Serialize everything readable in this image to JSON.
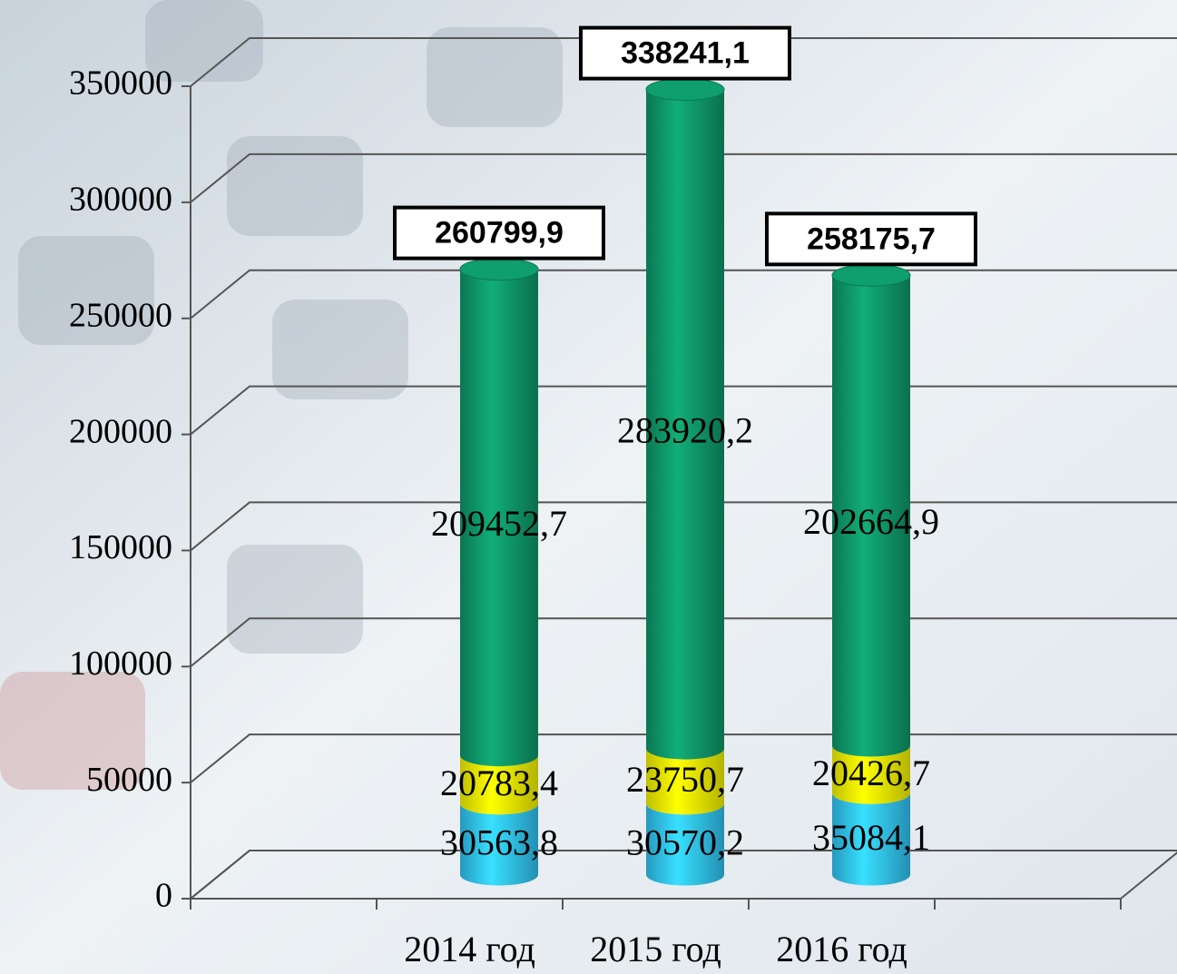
{
  "chart_data": {
    "type": "stacked-cylinder",
    "categories": [
      "2014 год",
      "2015 год",
      "2016 год"
    ],
    "series": [
      {
        "color": "#33ccff",
        "values": [
          30563.8,
          30570.2,
          35084.1
        ],
        "value_labels": [
          "30563,8",
          "30570,2",
          "35084,1"
        ]
      },
      {
        "color": "#ffff00",
        "values": [
          20783.4,
          23750.7,
          20426.7
        ],
        "value_labels": [
          "20783,4",
          "23750,7",
          "20426,7"
        ]
      },
      {
        "color": "#0f9e6e",
        "values": [
          209452.7,
          283920.2,
          202664.9
        ],
        "value_labels": [
          "209452,7",
          "283920,2",
          "202664,9"
        ]
      }
    ],
    "totals": {
      "values": [
        260799.9,
        338241.1,
        258175.7
      ],
      "value_labels": [
        "260799,9",
        "338241,1",
        "258175,7"
      ]
    },
    "ylim": [
      0,
      350000
    ],
    "yticks": [
      0,
      50000,
      100000,
      150000,
      200000,
      250000,
      300000,
      350000
    ],
    "grid": true
  }
}
